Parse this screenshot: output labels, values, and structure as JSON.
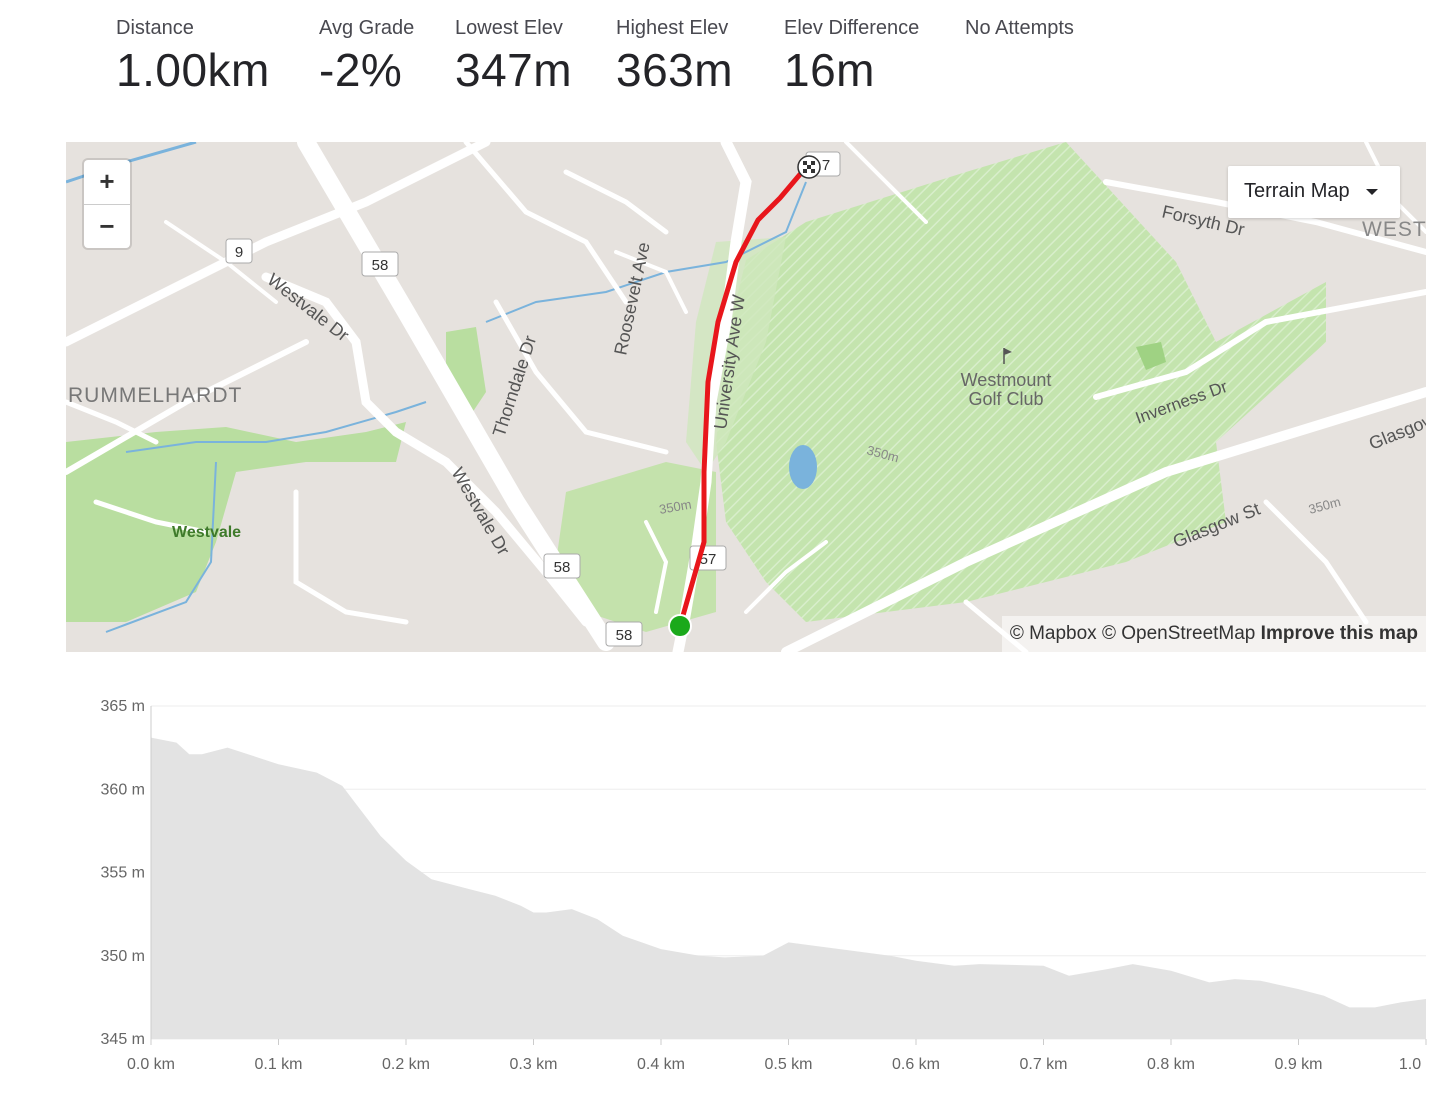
{
  "stats": [
    {
      "label": "Distance",
      "value": "1.00km"
    },
    {
      "label": "Avg Grade",
      "value": "-2%"
    },
    {
      "label": "Lowest Elev",
      "value": "347m"
    },
    {
      "label": "Highest Elev",
      "value": "363m"
    },
    {
      "label": "Elev Difference",
      "value": "16m"
    },
    {
      "label": "No Attempts",
      "value": ""
    }
  ],
  "map": {
    "zoom_in": "+",
    "zoom_out": "−",
    "map_type": "Terrain Map",
    "attribution": {
      "mapbox": "© Mapbox",
      "osm": "© OpenStreetMap",
      "improve": "Improve this map"
    },
    "labels": {
      "westvale_dr_1": "Westvale Dr",
      "westvale_dr_2": "Westvale Dr",
      "rummelhardt": "RUMMELHARDT",
      "westvale": "Westvale",
      "thorndale_dr": "Thorndale Dr",
      "roosevelt_ave": "Roosevelt Ave",
      "university_ave_w": "University Ave W",
      "westmount_1": "Westmount",
      "westmount_2": "Golf Club",
      "forsyth_dr": "Forsyth Dr",
      "inverness_dr": "Inverness Dr",
      "glasgow_st_1": "Glasgow St",
      "glasgow_st_2": "Glasgow",
      "west": "WEST",
      "contour_350_1": "350m",
      "contour_350_2": "350m",
      "contour_350_3": "350m",
      "route_9": "9",
      "route_58_a": "58",
      "route_58_b": "58",
      "route_58_c": "58",
      "route_57_a": "57",
      "route_57_b": "7"
    },
    "colors": {
      "route": "#e8161b",
      "start": "#1ba91b",
      "park": "#b9dea0",
      "road": "#ffffff",
      "water": "#7ab3dc"
    }
  },
  "chart_data": {
    "type": "area",
    "xlabel": "",
    "ylabel": "",
    "x_ticks": [
      "0.0 km",
      "0.1 km",
      "0.2 km",
      "0.3 km",
      "0.4 km",
      "0.5 km",
      "0.6 km",
      "0.7 km",
      "0.8 km",
      "0.9 km",
      "1.0"
    ],
    "y_ticks": [
      "345 m",
      "350 m",
      "355 m",
      "360 m",
      "365 m"
    ],
    "xlim": [
      0,
      1.0
    ],
    "ylim": [
      345,
      365
    ],
    "fill_color": "#e3e3e3",
    "x": [
      0.0,
      0.02,
      0.03,
      0.04,
      0.06,
      0.08,
      0.1,
      0.13,
      0.15,
      0.16,
      0.18,
      0.2,
      0.22,
      0.25,
      0.27,
      0.29,
      0.3,
      0.31,
      0.33,
      0.35,
      0.37,
      0.4,
      0.43,
      0.45,
      0.48,
      0.5,
      0.52,
      0.55,
      0.58,
      0.6,
      0.63,
      0.65,
      0.7,
      0.72,
      0.75,
      0.77,
      0.8,
      0.83,
      0.85,
      0.87,
      0.9,
      0.92,
      0.94,
      0.96,
      0.98,
      1.0
    ],
    "y": [
      363.1,
      362.8,
      362.1,
      362.1,
      362.5,
      362.0,
      361.5,
      361.0,
      360.2,
      359.2,
      357.2,
      355.7,
      354.6,
      354.0,
      353.6,
      353.0,
      352.6,
      352.6,
      352.8,
      352.2,
      351.2,
      350.4,
      350.0,
      349.9,
      350.0,
      350.8,
      350.6,
      350.3,
      350.0,
      349.7,
      349.4,
      349.5,
      349.4,
      348.8,
      349.2,
      349.5,
      349.1,
      348.4,
      348.6,
      348.5,
      348.0,
      347.6,
      346.9,
      346.9,
      347.2,
      347.4
    ]
  }
}
